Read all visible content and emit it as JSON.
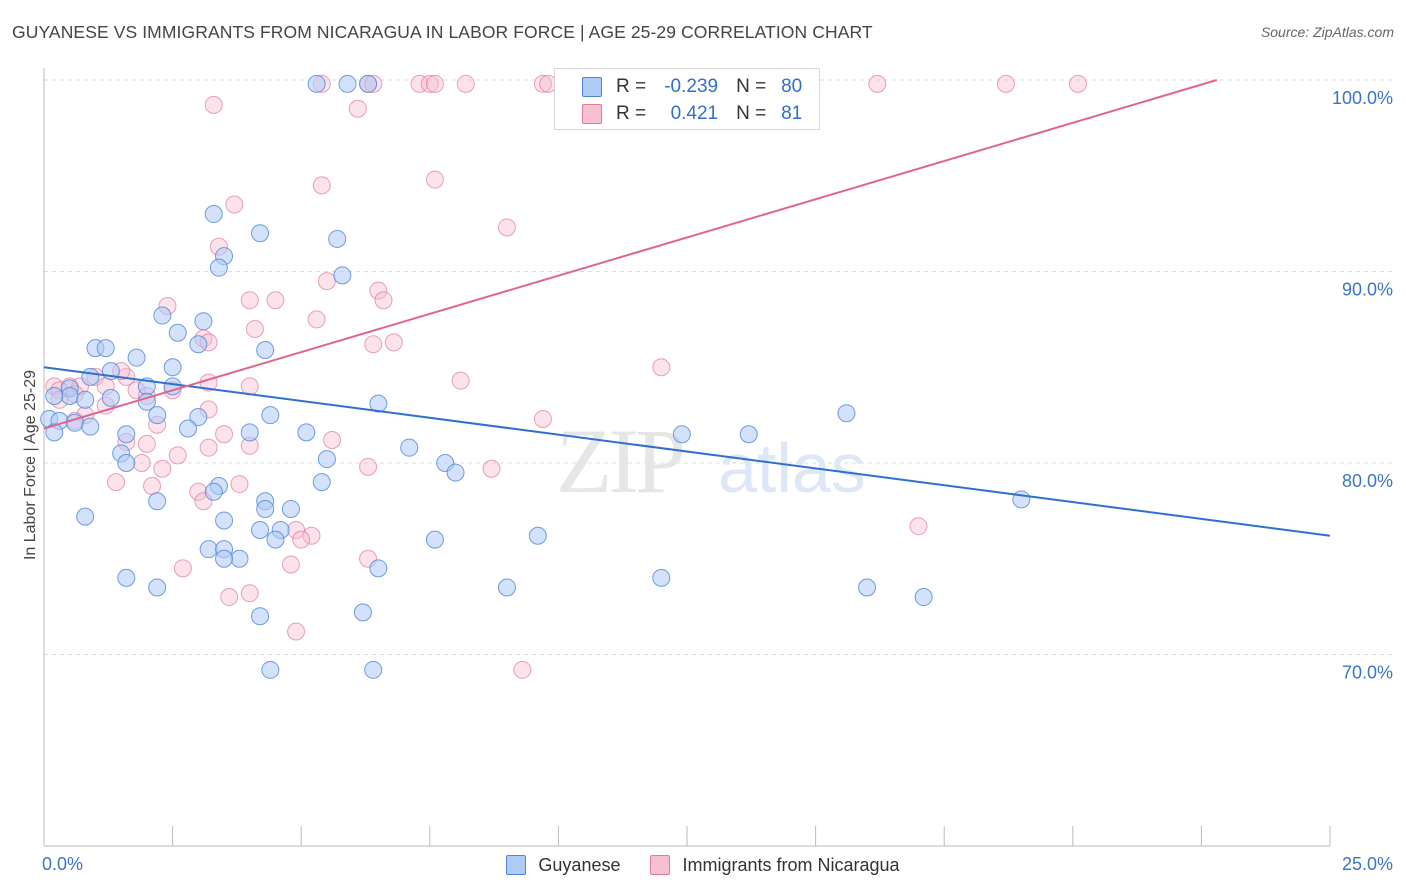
{
  "title": "GUYANESE VS IMMIGRANTS FROM NICARAGUA IN LABOR FORCE | AGE 25-29 CORRELATION CHART",
  "source": "Source: ZipAtlas.com",
  "watermark": {
    "zip": "ZIP",
    "atlas": "atlas"
  },
  "legend": {
    "rows": [
      {
        "r_label": "R =",
        "r_value": "-0.239",
        "n_label": "N =",
        "n_value": "80"
      },
      {
        "r_label": "R =",
        "r_value": "0.421",
        "n_label": "N =",
        "n_value": "81"
      }
    ]
  },
  "bottom_legend": [
    "Guyanese",
    "Immigrants from Nicaragua"
  ],
  "colors": {
    "blue_fill": "#aecbf5",
    "blue_stroke": "#4f86d8",
    "blue_line": "#2f6fd0",
    "pink_fill": "#f7bfd2",
    "pink_stroke": "#e07a9c",
    "pink_line": "#e0648c",
    "tick_text": "#3a74c9",
    "grid": "#dddddd"
  },
  "chart_data": {
    "type": "scatter",
    "title": "GUYANESE VS IMMIGRANTS FROM NICARAGUA IN LABOR FORCE | AGE 25-29 CORRELATION CHART",
    "xlabel": "",
    "ylabel": "In Labor Force | Age 25-29",
    "xlim": [
      0,
      25
    ],
    "ylim": [
      60,
      100
    ],
    "x_tick_labels": [
      {
        "x": 0,
        "label": "0.0%"
      },
      {
        "x": 25,
        "label": "25.0%"
      }
    ],
    "y_ticks": [
      {
        "y": 100,
        "label": "100.0%"
      },
      {
        "y": 90,
        "label": "90.0%"
      },
      {
        "y": 80,
        "label": "80.0%"
      },
      {
        "y": 70,
        "label": "70.0%"
      }
    ],
    "grid": "horizontal dashed",
    "legend_position": "top-center",
    "series": [
      {
        "name": "Guyanese",
        "color": "#4f86d8",
        "trend": {
          "x": [
            0,
            25
          ],
          "y": [
            85.0,
            76.2
          ]
        },
        "points": [
          [
            5.3,
            99.8
          ],
          [
            5.9,
            99.8
          ],
          [
            6.3,
            99.8
          ],
          [
            3.3,
            93.0
          ],
          [
            4.2,
            92.0
          ],
          [
            5.7,
            91.7
          ],
          [
            3.5,
            90.8
          ],
          [
            3.4,
            90.2
          ],
          [
            5.8,
            89.8
          ],
          [
            2.3,
            87.7
          ],
          [
            3.1,
            87.4
          ],
          [
            2.6,
            86.8
          ],
          [
            3.0,
            86.2
          ],
          [
            1.0,
            86.0
          ],
          [
            1.2,
            86.0
          ],
          [
            4.3,
            85.9
          ],
          [
            1.8,
            85.5
          ],
          [
            2.5,
            85.0
          ],
          [
            1.3,
            84.8
          ],
          [
            0.9,
            84.5
          ],
          [
            2.0,
            84.0
          ],
          [
            2.5,
            84.0
          ],
          [
            0.5,
            83.9
          ],
          [
            0.5,
            83.5
          ],
          [
            0.2,
            83.5
          ],
          [
            1.3,
            83.4
          ],
          [
            0.8,
            83.3
          ],
          [
            2.0,
            83.2
          ],
          [
            6.5,
            83.1
          ],
          [
            4.4,
            82.5
          ],
          [
            2.2,
            82.5
          ],
          [
            3.0,
            82.4
          ],
          [
            0.1,
            82.3
          ],
          [
            0.3,
            82.2
          ],
          [
            0.6,
            82.1
          ],
          [
            0.9,
            81.9
          ],
          [
            2.8,
            81.8
          ],
          [
            0.2,
            81.6
          ],
          [
            5.1,
            81.6
          ],
          [
            4.0,
            81.6
          ],
          [
            1.6,
            81.5
          ],
          [
            12.4,
            81.5
          ],
          [
            13.7,
            81.5
          ],
          [
            15.6,
            82.6
          ],
          [
            7.1,
            80.8
          ],
          [
            1.5,
            80.5
          ],
          [
            1.6,
            80.0
          ],
          [
            5.5,
            80.2
          ],
          [
            7.8,
            80.0
          ],
          [
            8.0,
            79.5
          ],
          [
            5.4,
            79.0
          ],
          [
            3.4,
            78.8
          ],
          [
            19.0,
            78.1
          ],
          [
            3.3,
            78.5
          ],
          [
            2.2,
            78.0
          ],
          [
            4.3,
            78.0
          ],
          [
            4.8,
            77.6
          ],
          [
            4.3,
            77.6
          ],
          [
            0.8,
            77.2
          ],
          [
            3.5,
            77.0
          ],
          [
            4.6,
            76.5
          ],
          [
            4.2,
            76.5
          ],
          [
            9.6,
            76.2
          ],
          [
            4.5,
            76.0
          ],
          [
            7.6,
            76.0
          ],
          [
            3.2,
            75.5
          ],
          [
            3.5,
            75.5
          ],
          [
            3.8,
            75.0
          ],
          [
            3.5,
            75.0
          ],
          [
            1.6,
            74.0
          ],
          [
            2.2,
            73.5
          ],
          [
            12.0,
            74.0
          ],
          [
            16.0,
            73.5
          ],
          [
            17.1,
            73.0
          ],
          [
            4.2,
            72.0
          ],
          [
            6.2,
            72.2
          ],
          [
            6.5,
            74.5
          ],
          [
            9.0,
            73.5
          ],
          [
            4.4,
            69.2
          ],
          [
            6.4,
            69.2
          ]
        ]
      },
      {
        "name": "Immigrants from Nicaragua",
        "color": "#e07a9c",
        "trend": {
          "x": [
            0,
            22.8
          ],
          "y": [
            81.8,
            100
          ]
        },
        "points": [
          [
            5.4,
            99.8
          ],
          [
            6.3,
            99.8
          ],
          [
            6.4,
            99.8
          ],
          [
            7.3,
            99.8
          ],
          [
            7.5,
            99.8
          ],
          [
            7.6,
            99.8
          ],
          [
            8.2,
            99.8
          ],
          [
            9.7,
            99.8
          ],
          [
            9.8,
            99.8
          ],
          [
            16.2,
            99.8
          ],
          [
            18.7,
            99.8
          ],
          [
            20.1,
            99.8
          ],
          [
            3.3,
            98.7
          ],
          [
            6.1,
            98.5
          ],
          [
            5.4,
            94.5
          ],
          [
            7.6,
            94.8
          ],
          [
            3.7,
            93.5
          ],
          [
            9.0,
            92.3
          ],
          [
            3.4,
            91.3
          ],
          [
            5.5,
            89.5
          ],
          [
            6.5,
            89.0
          ],
          [
            4.0,
            88.5
          ],
          [
            4.5,
            88.5
          ],
          [
            6.6,
            88.5
          ],
          [
            2.4,
            88.2
          ],
          [
            5.3,
            87.5
          ],
          [
            4.1,
            87.0
          ],
          [
            3.1,
            86.5
          ],
          [
            3.2,
            86.3
          ],
          [
            6.4,
            86.2
          ],
          [
            6.8,
            86.3
          ],
          [
            12.0,
            85.0
          ],
          [
            1.0,
            84.5
          ],
          [
            1.6,
            84.5
          ],
          [
            8.1,
            84.3
          ],
          [
            3.2,
            84.2
          ],
          [
            0.2,
            84.0
          ],
          [
            0.5,
            84.0
          ],
          [
            0.7,
            84.0
          ],
          [
            1.2,
            84.0
          ],
          [
            0.3,
            83.8
          ],
          [
            1.8,
            83.8
          ],
          [
            0.6,
            83.6
          ],
          [
            2.0,
            83.5
          ],
          [
            4.0,
            84.0
          ],
          [
            0.3,
            83.3
          ],
          [
            1.2,
            83.0
          ],
          [
            3.2,
            82.8
          ],
          [
            0.8,
            82.5
          ],
          [
            0.6,
            82.2
          ],
          [
            2.2,
            82.0
          ],
          [
            9.7,
            82.3
          ],
          [
            3.5,
            81.5
          ],
          [
            1.6,
            81.1
          ],
          [
            2.0,
            81.0
          ],
          [
            4.0,
            80.9
          ],
          [
            3.2,
            80.8
          ],
          [
            5.6,
            81.2
          ],
          [
            2.6,
            80.4
          ],
          [
            1.9,
            80.0
          ],
          [
            2.3,
            79.7
          ],
          [
            8.7,
            79.7
          ],
          [
            6.3,
            79.8
          ],
          [
            1.4,
            79.0
          ],
          [
            3.8,
            78.9
          ],
          [
            2.1,
            78.8
          ],
          [
            3.0,
            78.5
          ],
          [
            3.1,
            78.0
          ],
          [
            17.0,
            76.7
          ],
          [
            4.9,
            76.5
          ],
          [
            5.2,
            76.2
          ],
          [
            5.0,
            76.0
          ],
          [
            6.3,
            75.0
          ],
          [
            4.8,
            74.7
          ],
          [
            2.7,
            74.5
          ],
          [
            3.6,
            73.0
          ],
          [
            4.0,
            73.2
          ],
          [
            4.9,
            71.2
          ],
          [
            9.3,
            69.2
          ],
          [
            2.5,
            83.8
          ],
          [
            1.5,
            84.8
          ]
        ]
      }
    ]
  }
}
